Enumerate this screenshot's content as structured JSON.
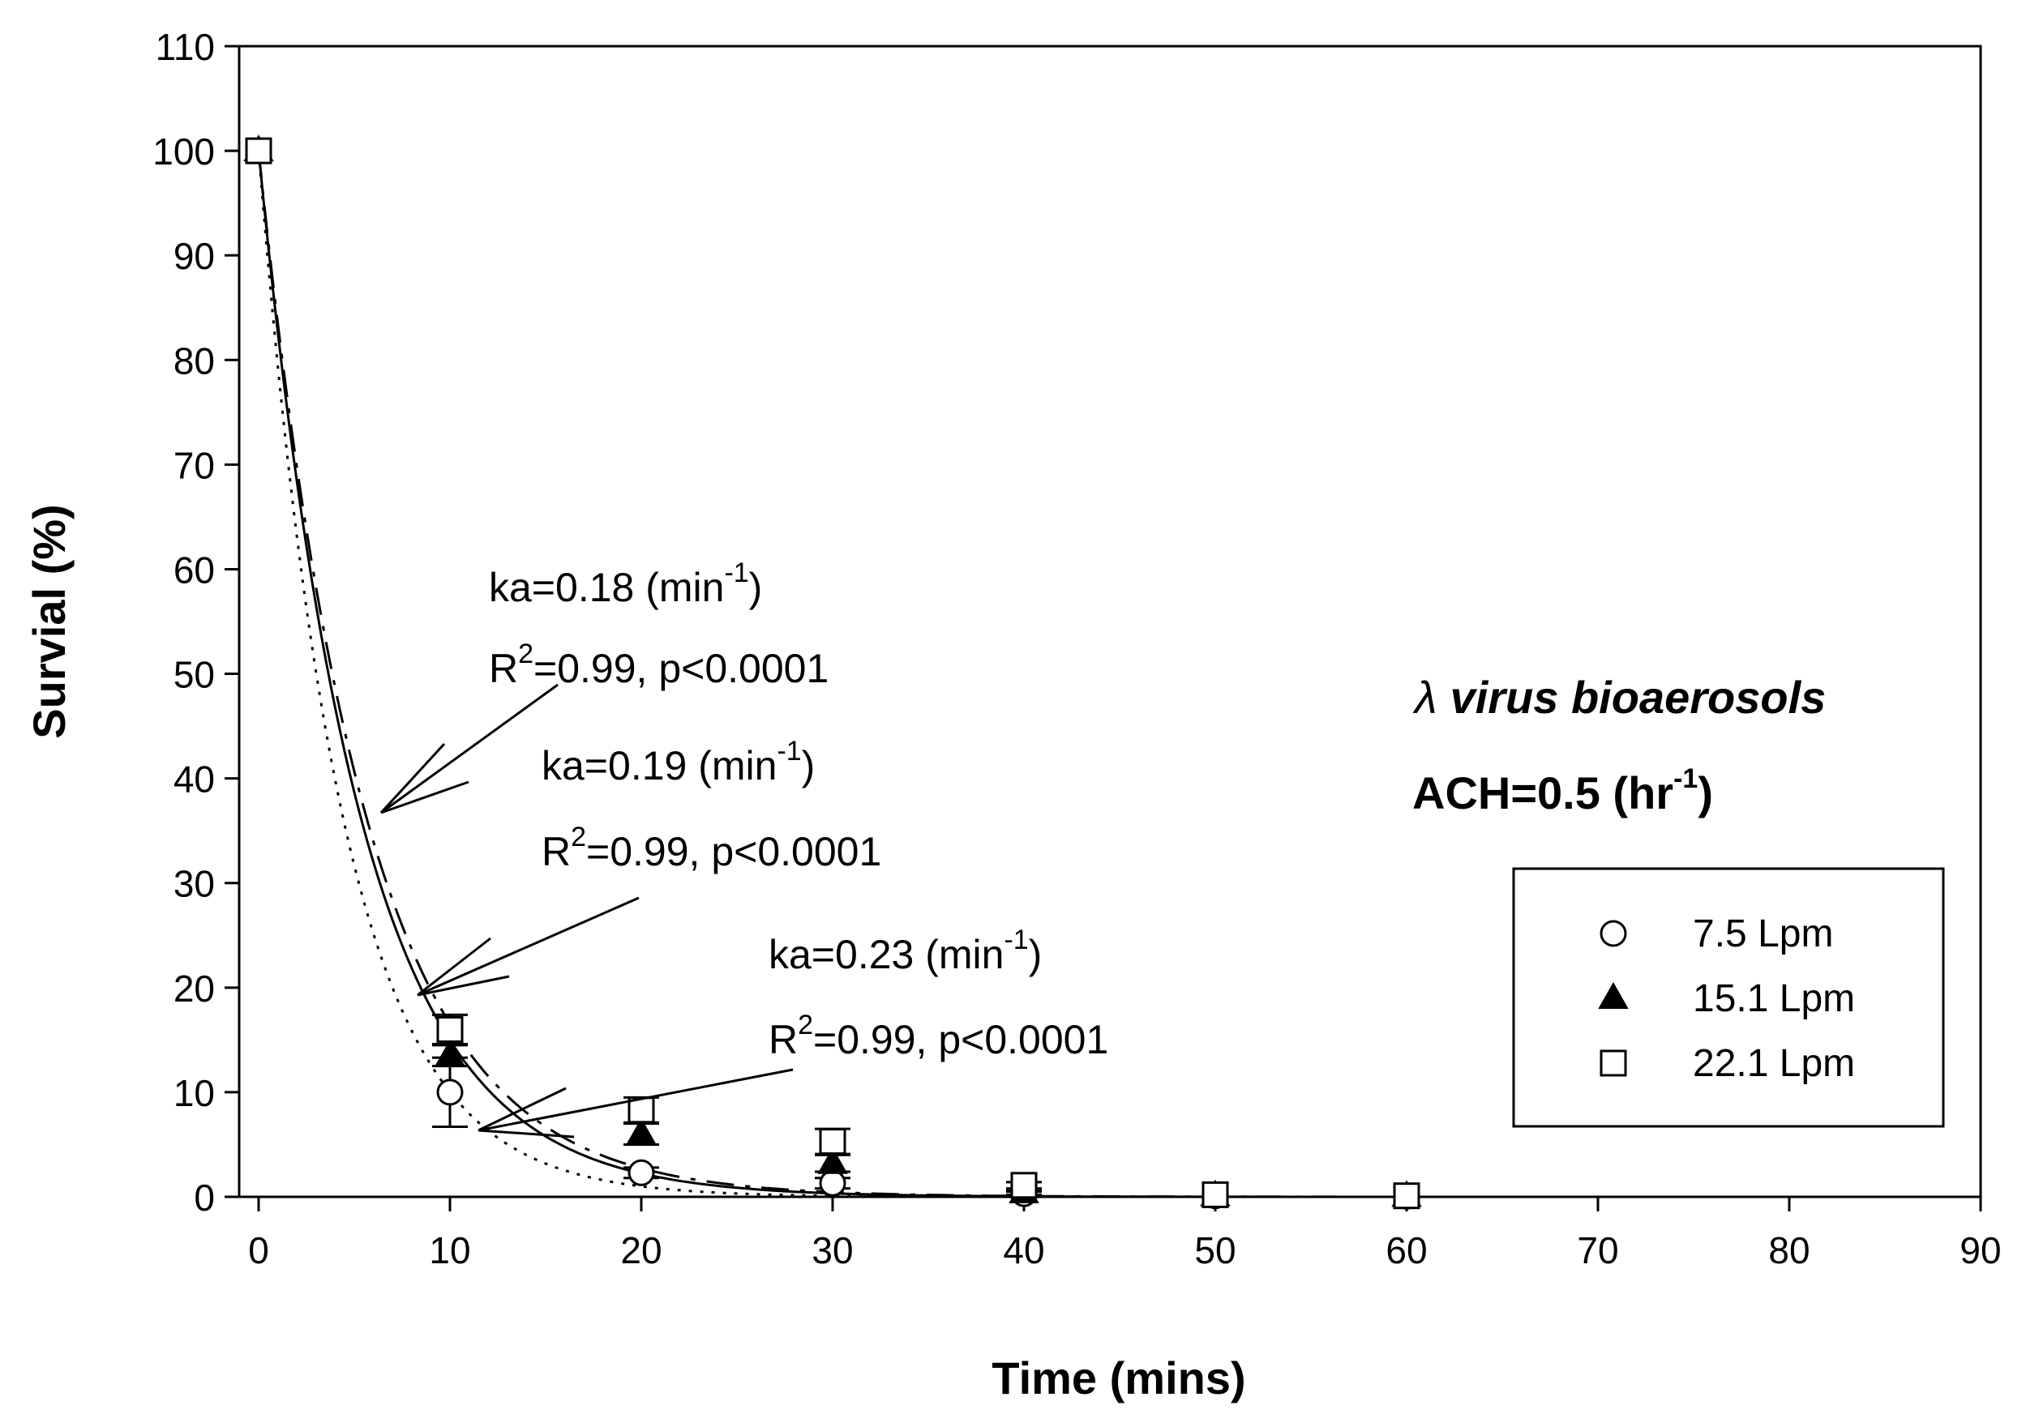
{
  "chart_data": {
    "type": "scatter",
    "xlabel": "Time (mins)",
    "ylabel": "Survial (%)",
    "xlim": [
      0,
      90
    ],
    "ylim": [
      0,
      110
    ],
    "xticks": [
      "0",
      "10",
      "20",
      "30",
      "40",
      "50",
      "60",
      "70",
      "80",
      "90"
    ],
    "yticks": [
      "0",
      "10",
      "20",
      "30",
      "40",
      "50",
      "60",
      "70",
      "80",
      "90",
      "100",
      "110"
    ],
    "grid": false,
    "legend_position": "right",
    "series": [
      {
        "name": "7.5 Lpm",
        "marker": "circle-open",
        "x": [
          0,
          10,
          20,
          30,
          40,
          50,
          60
        ],
        "y": [
          100,
          10,
          2.3,
          1.3,
          0.3,
          0.1,
          0.05
        ],
        "err": [
          0,
          3.3,
          0.5,
          0.5,
          0.2,
          0,
          0
        ]
      },
      {
        "name": "15.1 Lpm",
        "marker": "triangle-filled",
        "x": [
          0,
          10,
          20,
          30,
          40,
          50,
          60
        ],
        "y": [
          100,
          13.5,
          6,
          3.2,
          0.4,
          0.1,
          0.05
        ],
        "err": [
          0,
          1,
          1,
          0.8,
          0.2,
          0,
          0
        ]
      },
      {
        "name": "22.1 Lpm",
        "marker": "square-open",
        "x": [
          0,
          10,
          20,
          30,
          40,
          50,
          60
        ],
        "y": [
          100,
          16,
          8.3,
          5.3,
          1.1,
          0.2,
          0.1
        ],
        "err": [
          0,
          1.4,
          1.2,
          1.2,
          0.3,
          0,
          0
        ]
      }
    ],
    "fits": [
      {
        "k": 0.18,
        "style": "dash-dot"
      },
      {
        "k": 0.19,
        "style": "solid"
      },
      {
        "k": 0.23,
        "style": "dotted"
      }
    ],
    "annotations": [
      {
        "line1_prefix": "ka=0.18 (min",
        "line1_sup": "-1",
        "line1_suffix": ")",
        "line2_prefix": "R",
        "line2_sup": "2",
        "line2_suffix": "=0.99, p<0.0001"
      },
      {
        "line1_prefix": "ka=0.19 (min",
        "line1_sup": "-1",
        "line1_suffix": ")",
        "line2_prefix": "R",
        "line2_sup": "2",
        "line2_suffix": "=0.99, p<0.0001"
      },
      {
        "line1_prefix": "ka=0.23 (min",
        "line1_sup": "-1",
        "line1_suffix": ")",
        "line2_prefix": "R",
        "line2_sup": "2",
        "line2_suffix": "=0.99, p<0.0001"
      }
    ],
    "info": {
      "title_symbol": "λ",
      "title_text": "virus bioaerosols",
      "ach_prefix": "ACH=0.5 (hr",
      "ach_sup": "-1",
      "ach_suffix": ")"
    }
  }
}
